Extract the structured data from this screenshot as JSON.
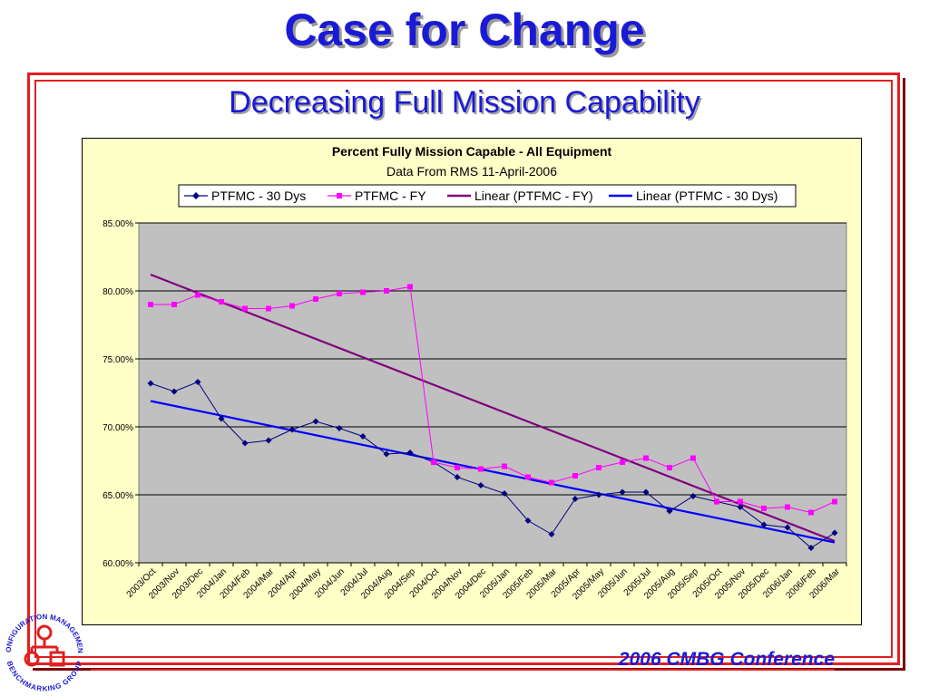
{
  "slide": {
    "title": "Case for Change",
    "subtitle": "Decreasing Full Mission Capability",
    "footer": "2006 CMBG Conference",
    "logo_text_top": "CONFIGURATION MANAGEMENT",
    "logo_text_bottom": "BENCHMARKING GROUP"
  },
  "colors": {
    "title_blue": "#1a1ad6",
    "frame_red": "#e02020",
    "chart_bg": "#ffffc8",
    "plot_bg": "#c0c0c0",
    "series_30dys": "#000080",
    "series_fy": "#ff00ff",
    "trend_fy": "#800080",
    "trend_30dys": "#0000ff"
  },
  "chart_data": {
    "type": "line",
    "title": "Percent Fully Mission Capable - All Equipment",
    "subtitle": "Data From RMS 11-April-2006",
    "legend_position": "top",
    "grid": true,
    "ylim": [
      0.6,
      0.85
    ],
    "yticks": [
      "60.00%",
      "65.00%",
      "70.00%",
      "75.00%",
      "80.00%",
      "85.00%"
    ],
    "categories": [
      "2003/Oct",
      "2003/Nov",
      "2003/Dec",
      "2004/Jan",
      "2004/Feb",
      "2004/Mar",
      "2004/Apr",
      "2004/May",
      "2004/Jun",
      "2004/Jul",
      "2004/Aug",
      "2004/Sep",
      "2004/Oct",
      "2004/Nov",
      "2004/Dec",
      "2005/Jan",
      "2005/Feb",
      "2005/Mar",
      "2005/Apr",
      "2005/May",
      "2005/Jun",
      "2005/Jul",
      "2005/Aug",
      "2005/Sep",
      "2005/Oct",
      "2005/Nov",
      "2005/Dec",
      "2006/Jan",
      "2006/Feb",
      "2006/Mar"
    ],
    "series": [
      {
        "name": "PTFMC - 30 Dys",
        "marker": "diamond",
        "values": [
          0.732,
          0.726,
          0.733,
          0.706,
          0.688,
          0.69,
          0.698,
          0.704,
          0.699,
          0.693,
          0.68,
          0.681,
          0.674,
          0.663,
          0.657,
          0.651,
          0.631,
          0.621,
          0.647,
          0.65,
          0.652,
          0.652,
          0.638,
          0.649,
          0.645,
          0.641,
          0.628,
          0.626,
          0.611,
          0.622
        ]
      },
      {
        "name": "PTFMC - FY",
        "marker": "square",
        "values": [
          0.79,
          0.79,
          0.797,
          0.792,
          0.787,
          0.787,
          0.789,
          0.794,
          0.798,
          0.799,
          0.8,
          0.803,
          0.674,
          0.67,
          0.669,
          0.671,
          0.663,
          0.659,
          0.664,
          0.67,
          0.674,
          0.677,
          0.67,
          0.677,
          0.645,
          0.645,
          0.64,
          0.641,
          0.637,
          0.645
        ]
      }
    ],
    "trendlines": [
      {
        "name": "Linear (PTFMC - FY)",
        "start": 0.812,
        "end": 0.616
      },
      {
        "name": "Linear (PTFMC - 30 Dys)",
        "start": 0.719,
        "end": 0.615
      }
    ],
    "legend": [
      "PTFMC - 30 Dys",
      "PTFMC - FY",
      "Linear (PTFMC - FY)",
      "Linear (PTFMC - 30 Dys)"
    ]
  }
}
